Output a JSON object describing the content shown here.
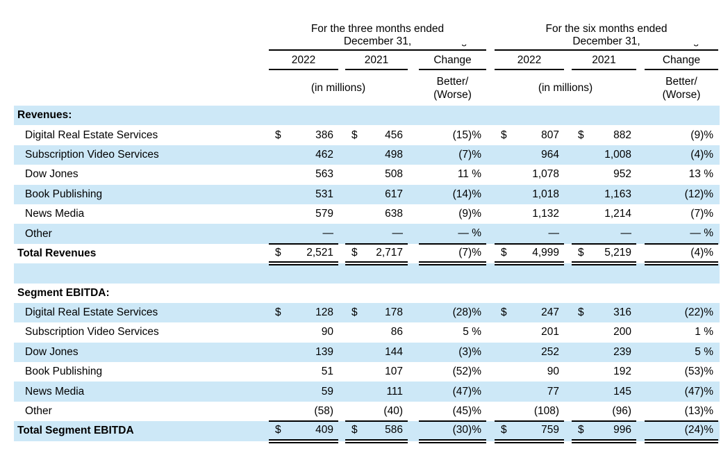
{
  "table": {
    "dollar_sign": "$",
    "shaded_row_color": "#cde8f7",
    "text_color": "#000000",
    "header": {
      "three_months": {
        "line1": "For the three months ended",
        "line2": "December 31,"
      },
      "six_months": {
        "line1": "For the six months ended",
        "line2": "December 31,"
      },
      "year_2022": "2022",
      "year_2021": "2021",
      "change": "Change",
      "units": "(in millions)",
      "better_worse_line1": "Better/",
      "better_worse_line2": "(Worse)",
      "clipped_fragment": "Change"
    },
    "rows": [
      {
        "type": "section",
        "label": "Revenues:",
        "dollar": false,
        "cells": [
          "",
          "",
          "",
          "",
          "",
          ""
        ]
      },
      {
        "type": "item",
        "label": "Digital Real Estate Services",
        "dollar": true,
        "cells": [
          "386",
          "456",
          "(15)%",
          "807",
          "882",
          "(9)%"
        ]
      },
      {
        "type": "item",
        "label": "Subscription Video Services",
        "dollar": false,
        "cells": [
          "462",
          "498",
          "(7)%",
          "964",
          "1,008",
          "(4)%"
        ]
      },
      {
        "type": "item",
        "label": "Dow Jones",
        "dollar": false,
        "cells": [
          "563",
          "508",
          "11 %",
          "1,078",
          "952",
          "13 %"
        ]
      },
      {
        "type": "item",
        "label": "Book Publishing",
        "dollar": false,
        "cells": [
          "531",
          "617",
          "(14)%",
          "1,018",
          "1,163",
          "(12)%"
        ]
      },
      {
        "type": "item",
        "label": "News Media",
        "dollar": false,
        "cells": [
          "579",
          "638",
          "(9)%",
          "1,132",
          "1,214",
          "(7)%"
        ]
      },
      {
        "type": "item",
        "label": "Other",
        "dollar": false,
        "cells": [
          "—",
          "—",
          "— %",
          "—",
          "—",
          "— %"
        ]
      },
      {
        "type": "total",
        "label": "Total Revenues",
        "dollar": true,
        "cells": [
          "2,521",
          "2,717",
          "(7)%",
          "4,999",
          "5,219",
          "(4)%"
        ]
      },
      {
        "type": "blank",
        "label": "",
        "dollar": false,
        "cells": [
          "",
          "",
          "",
          "",
          "",
          ""
        ]
      },
      {
        "type": "section",
        "label": "Segment EBITDA:",
        "dollar": false,
        "cells": [
          "",
          "",
          "",
          "",
          "",
          ""
        ]
      },
      {
        "type": "item",
        "label": "Digital Real Estate Services",
        "dollar": true,
        "cells": [
          "128",
          "178",
          "(28)%",
          "247",
          "316",
          "(22)%"
        ]
      },
      {
        "type": "item",
        "label": "Subscription Video Services",
        "dollar": false,
        "cells": [
          "90",
          "86",
          "5 %",
          "201",
          "200",
          "1 %"
        ]
      },
      {
        "type": "item",
        "label": "Dow Jones",
        "dollar": false,
        "cells": [
          "139",
          "144",
          "(3)%",
          "252",
          "239",
          "5 %"
        ]
      },
      {
        "type": "item",
        "label": "Book Publishing",
        "dollar": false,
        "cells": [
          "51",
          "107",
          "(52)%",
          "90",
          "192",
          "(53)%"
        ]
      },
      {
        "type": "item",
        "label": "News Media",
        "dollar": false,
        "cells": [
          "59",
          "111",
          "(47)%",
          "77",
          "145",
          "(47)%"
        ]
      },
      {
        "type": "item",
        "label": "Other",
        "dollar": false,
        "cells": [
          "(58)",
          "(40)",
          "(45)%",
          "(108)",
          "(96)",
          "(13)%"
        ]
      },
      {
        "type": "total",
        "label": "Total Segment EBITDA",
        "dollar": true,
        "cells": [
          "409",
          "586",
          "(30)%",
          "759",
          "996",
          "(24)%"
        ]
      }
    ]
  }
}
